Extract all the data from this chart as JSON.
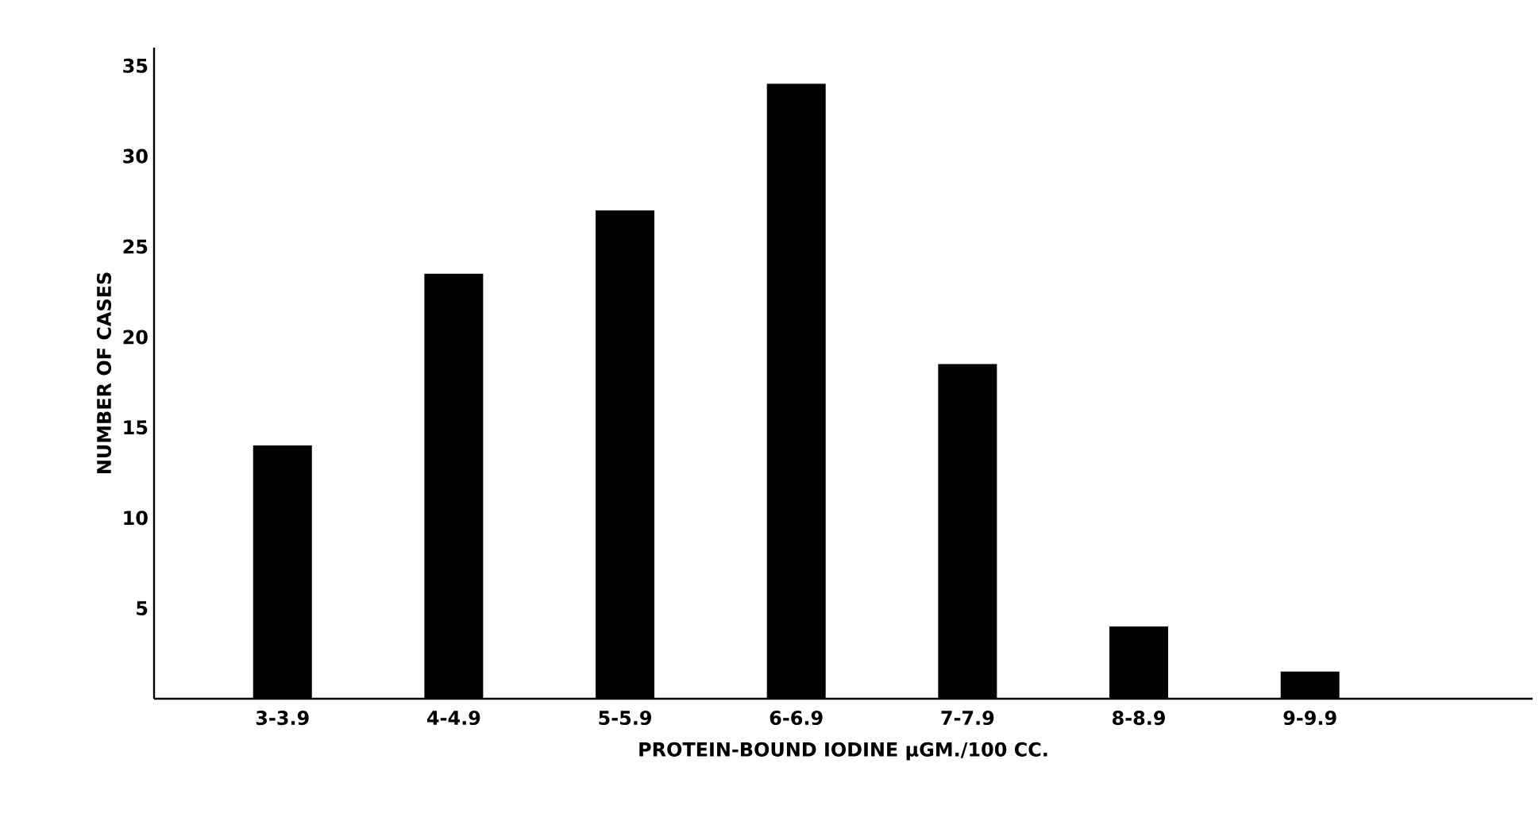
{
  "chart_data": {
    "type": "bar",
    "xlabel": "PROTEIN-BOUND IODINE μGM./100 CC.",
    "ylabel": "NUMBER OF CASES",
    "categories": [
      "3-3.9",
      "4-4.9",
      "5-5.9",
      "6-6.9",
      "7-7.9",
      "8-8.9",
      "9-9.9"
    ],
    "values": [
      14,
      23.5,
      27,
      34,
      18.5,
      4,
      1.5
    ],
    "color": "#000000",
    "ylim": [
      0,
      36
    ],
    "yticks": [
      5,
      10,
      15,
      20,
      25,
      30,
      35
    ],
    "grid": false
  }
}
